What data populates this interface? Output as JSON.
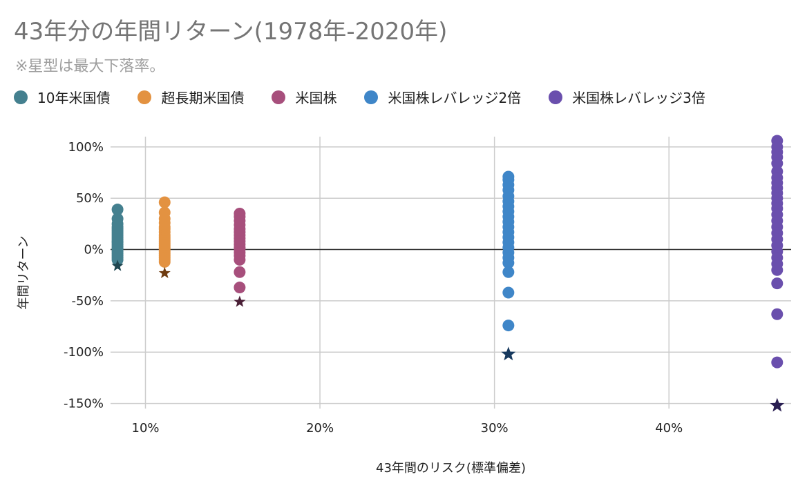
{
  "chart_data": {
    "type": "scatter",
    "title": "43年分の年間リターン(1978年-2020年)",
    "subtitle": "※星型は最大下落率。",
    "xlabel": "43年間のリスク(標準偏差)",
    "ylabel": "年間リターン",
    "xlim": [
      8,
      47
    ],
    "ylim": [
      -155,
      110
    ],
    "x_ticks": [
      {
        "value": 10,
        "label": "10%"
      },
      {
        "value": 20,
        "label": "20%"
      },
      {
        "value": 30,
        "label": "30%"
      },
      {
        "value": 40,
        "label": "40%"
      }
    ],
    "y_ticks": [
      {
        "value": 100,
        "label": "100%"
      },
      {
        "value": 50,
        "label": "50%"
      },
      {
        "value": 0,
        "label": "0%"
      },
      {
        "value": -50,
        "label": "-50%"
      },
      {
        "value": -100,
        "label": "-100%"
      },
      {
        "value": -150,
        "label": "-150%"
      }
    ],
    "grid": true,
    "legend_position": "top",
    "series": [
      {
        "name": "10年米国債",
        "color": "#44808f",
        "star_color": "#1f4650",
        "x": 8.4,
        "y_values": [
          39,
          30,
          25,
          22,
          20,
          18,
          16,
          14,
          12,
          10,
          8,
          7,
          5,
          3,
          1,
          0,
          -2,
          -4,
          -6,
          -8,
          -10
        ],
        "max_drawdown": -16
      },
      {
        "name": "超長期米国債",
        "color": "#e39241",
        "star_color": "#6e3b10",
        "x": 11.1,
        "y_values": [
          46,
          36,
          30,
          26,
          22,
          20,
          17,
          14,
          12,
          10,
          8,
          6,
          4,
          2,
          0,
          -2,
          -4,
          -6,
          -8,
          -10,
          -12
        ],
        "max_drawdown": -23
      },
      {
        "name": "米国株",
        "color": "#a74f7c",
        "star_color": "#4a1f36",
        "x": 15.4,
        "y_values": [
          35,
          32,
          28,
          24,
          20,
          17,
          14,
          11,
          8,
          5,
          2,
          0,
          -3,
          -6,
          -10,
          -22,
          -37
        ],
        "max_drawdown": -51
      },
      {
        "name": "米国株レバレッジ2倍",
        "color": "#3f86c8",
        "star_color": "#17395e",
        "x": 30.8,
        "y_values": [
          71,
          68,
          63,
          58,
          52,
          47,
          42,
          37,
          32,
          27,
          22,
          17,
          12,
          7,
          2,
          -3,
          -8,
          -13,
          -22,
          -42,
          -74
        ],
        "max_drawdown": -102
      },
      {
        "name": "米国株レバレッジ3倍",
        "color": "#6a4fad",
        "star_color": "#2a1f52",
        "x": 46.2,
        "y_values": [
          106,
          100,
          95,
          90,
          84,
          76,
          70,
          65,
          60,
          55,
          50,
          45,
          40,
          34,
          28,
          22,
          16,
          10,
          4,
          -2,
          -8,
          -14,
          -20,
          -33,
          -63,
          -110
        ],
        "max_drawdown": -152
      }
    ]
  }
}
